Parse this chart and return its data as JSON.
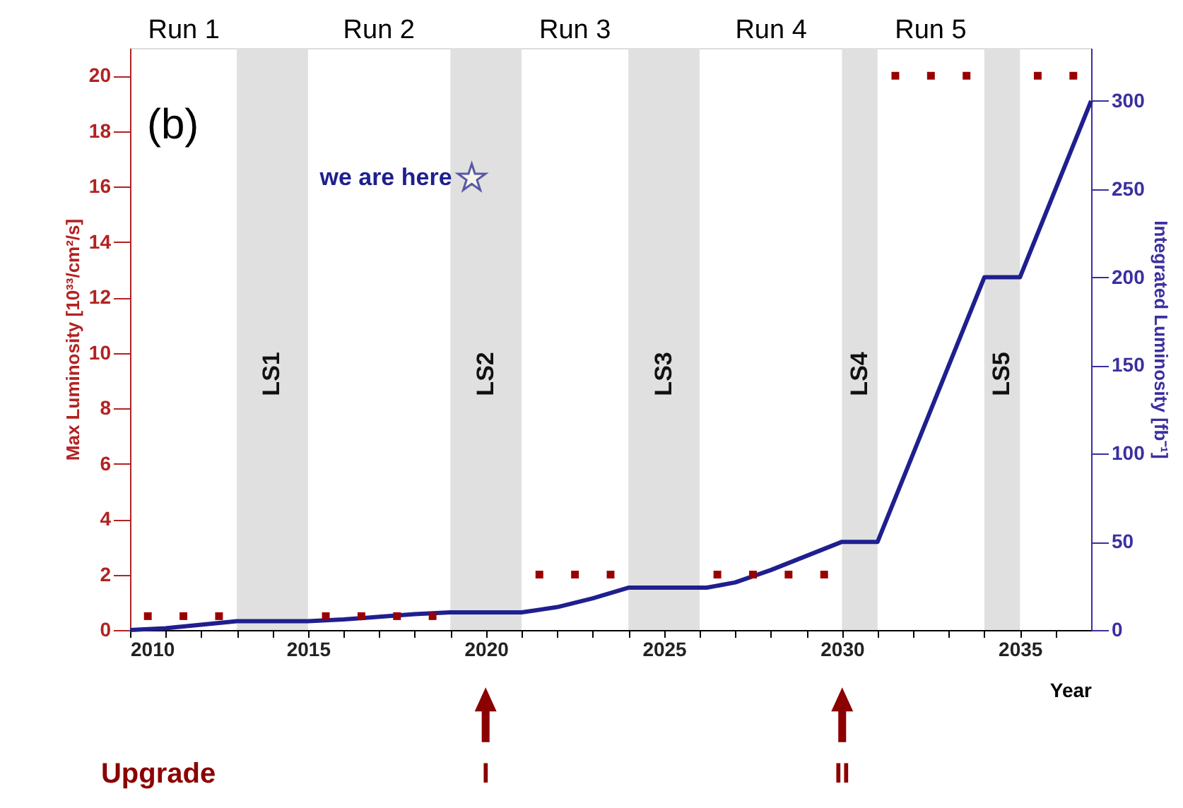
{
  "chart_data": {
    "type": "scatter",
    "title": "(b)",
    "xlabel": "Year",
    "ylabel": "Max Luminosity [10³³/cm²/s]",
    "y2label": "Integrated Luminosity [fb⁻¹]",
    "xlim": [
      2010,
      2037
    ],
    "xticks": [
      2010,
      {
        "value": 2011,
        "label": null
      },
      {
        "value": 2012,
        "label": null
      },
      {
        "value": 2013,
        "label": null
      },
      {
        "value": 2014,
        "label": null
      },
      2015,
      {
        "value": 2016,
        "label": null
      },
      {
        "value": 2017,
        "label": null
      },
      {
        "value": 2018,
        "label": null
      },
      {
        "value": 2019,
        "label": null
      },
      2020,
      {
        "value": 2021,
        "label": null
      },
      {
        "value": 2022,
        "label": null
      },
      {
        "value": 2023,
        "label": null
      },
      {
        "value": 2024,
        "label": null
      },
      2025,
      {
        "value": 2026,
        "label": null
      },
      {
        "value": 2027,
        "label": null
      },
      {
        "value": 2028,
        "label": null
      },
      {
        "value": 2029,
        "label": null
      },
      2030,
      {
        "value": 2031,
        "label": null
      },
      {
        "value": 2032,
        "label": null
      },
      {
        "value": 2033,
        "label": null
      },
      {
        "value": 2034,
        "label": null
      },
      2035,
      {
        "value": 2036,
        "label": null
      }
    ],
    "ylim": [
      0,
      21
    ],
    "yticks": [
      0,
      2,
      4,
      6,
      8,
      10,
      12,
      14,
      16,
      18,
      20
    ],
    "y2lim": [
      0,
      330
    ],
    "y2ticks": [
      0,
      50,
      100,
      150,
      200,
      250,
      300
    ],
    "grid": false,
    "series": [
      {
        "marker": "square",
        "color": "#990000",
        "x": [
          2010.5,
          2011.5,
          2012.5,
          2015.5,
          2016.5,
          2017.5,
          2018.5,
          2021.5,
          2022.5,
          2023.5,
          2026.5,
          2027.5,
          2028.5,
          2029.5,
          2031.5,
          2032.5,
          2033.5,
          2035.5,
          2036.5
        ],
        "values": [
          0.5,
          0.5,
          0.5,
          0.5,
          0.5,
          0.5,
          0.5,
          2,
          2,
          2,
          2,
          2,
          2,
          2,
          20,
          20,
          20,
          20,
          20
        ]
      },
      {
        "type": "line",
        "axis": "y2",
        "marker": "none",
        "line_style": "solid",
        "color": "#1f1f8f",
        "x": [
          2010,
          2011,
          2012,
          2013,
          2015,
          2016,
          2017,
          2018,
          2019,
          2021,
          2022,
          2023,
          2024,
          2026.2,
          2027,
          2028,
          2029,
          2030,
          2031,
          2034,
          2035,
          2037
        ],
        "values": [
          0,
          1,
          3,
          5,
          5,
          6,
          7.5,
          9,
          10,
          10,
          13,
          18,
          24,
          24,
          27,
          34,
          42,
          50,
          50,
          200,
          200,
          300
        ]
      }
    ],
    "bands": [
      {
        "axis": "x",
        "from": 2013,
        "to": 2015,
        "label": "LS1",
        "color": "#e0e0e0"
      },
      {
        "axis": "x",
        "from": 2019,
        "to": 2021,
        "label": "LS2",
        "color": "#e0e0e0"
      },
      {
        "axis": "x",
        "from": 2024,
        "to": 2026,
        "label": "LS3",
        "color": "#e0e0e0"
      },
      {
        "axis": "x",
        "from": 2030,
        "to": 2031,
        "label": "LS4",
        "color": "#e0e0e0"
      },
      {
        "axis": "x",
        "from": 2034,
        "to": 2035,
        "label": "LS5",
        "color": "#e0e0e0"
      }
    ],
    "annotations": [
      "Run 1",
      "Run 2",
      "Run 3",
      "Run 4",
      "Run 5",
      {
        "text": "we are here",
        "x": 2019.6,
        "y": 16.3
      },
      "Upgrade",
      "I",
      "II"
    ]
  }
}
